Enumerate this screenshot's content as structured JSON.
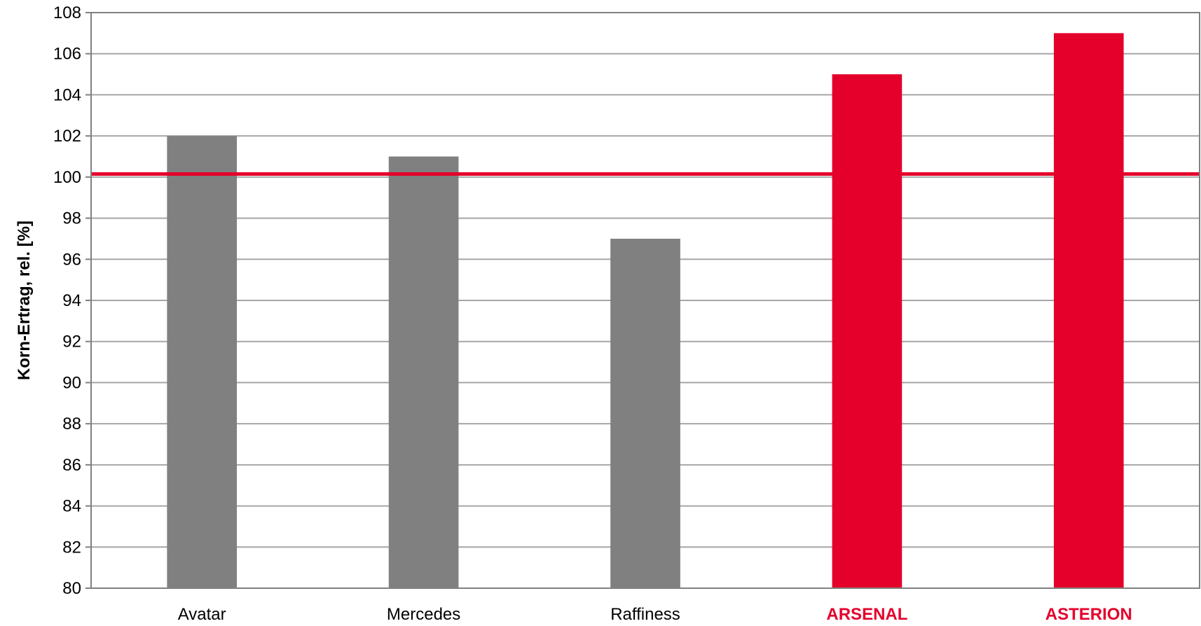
{
  "chart_data": {
    "type": "bar",
    "title": "",
    "xlabel": "",
    "ylabel": "Korn-Ertrag, rel. [%]",
    "ylim": [
      80,
      108
    ],
    "ytick_step": 2,
    "grid": true,
    "legend": "none",
    "categories": [
      "Avatar",
      "Mercedes",
      "Raffiness",
      "ARSENAL",
      "ASTERION"
    ],
    "values": [
      102,
      101,
      97,
      105,
      107
    ],
    "highlighted": [
      false,
      false,
      false,
      true,
      true
    ],
    "reference_line": {
      "value": 100.15
    },
    "colors": {
      "default_bar": "#808080",
      "highlight_bar": "#e4002b",
      "reference_line": "#e4002b",
      "gridline": "#a6a6a6",
      "axis": "#808080"
    }
  }
}
